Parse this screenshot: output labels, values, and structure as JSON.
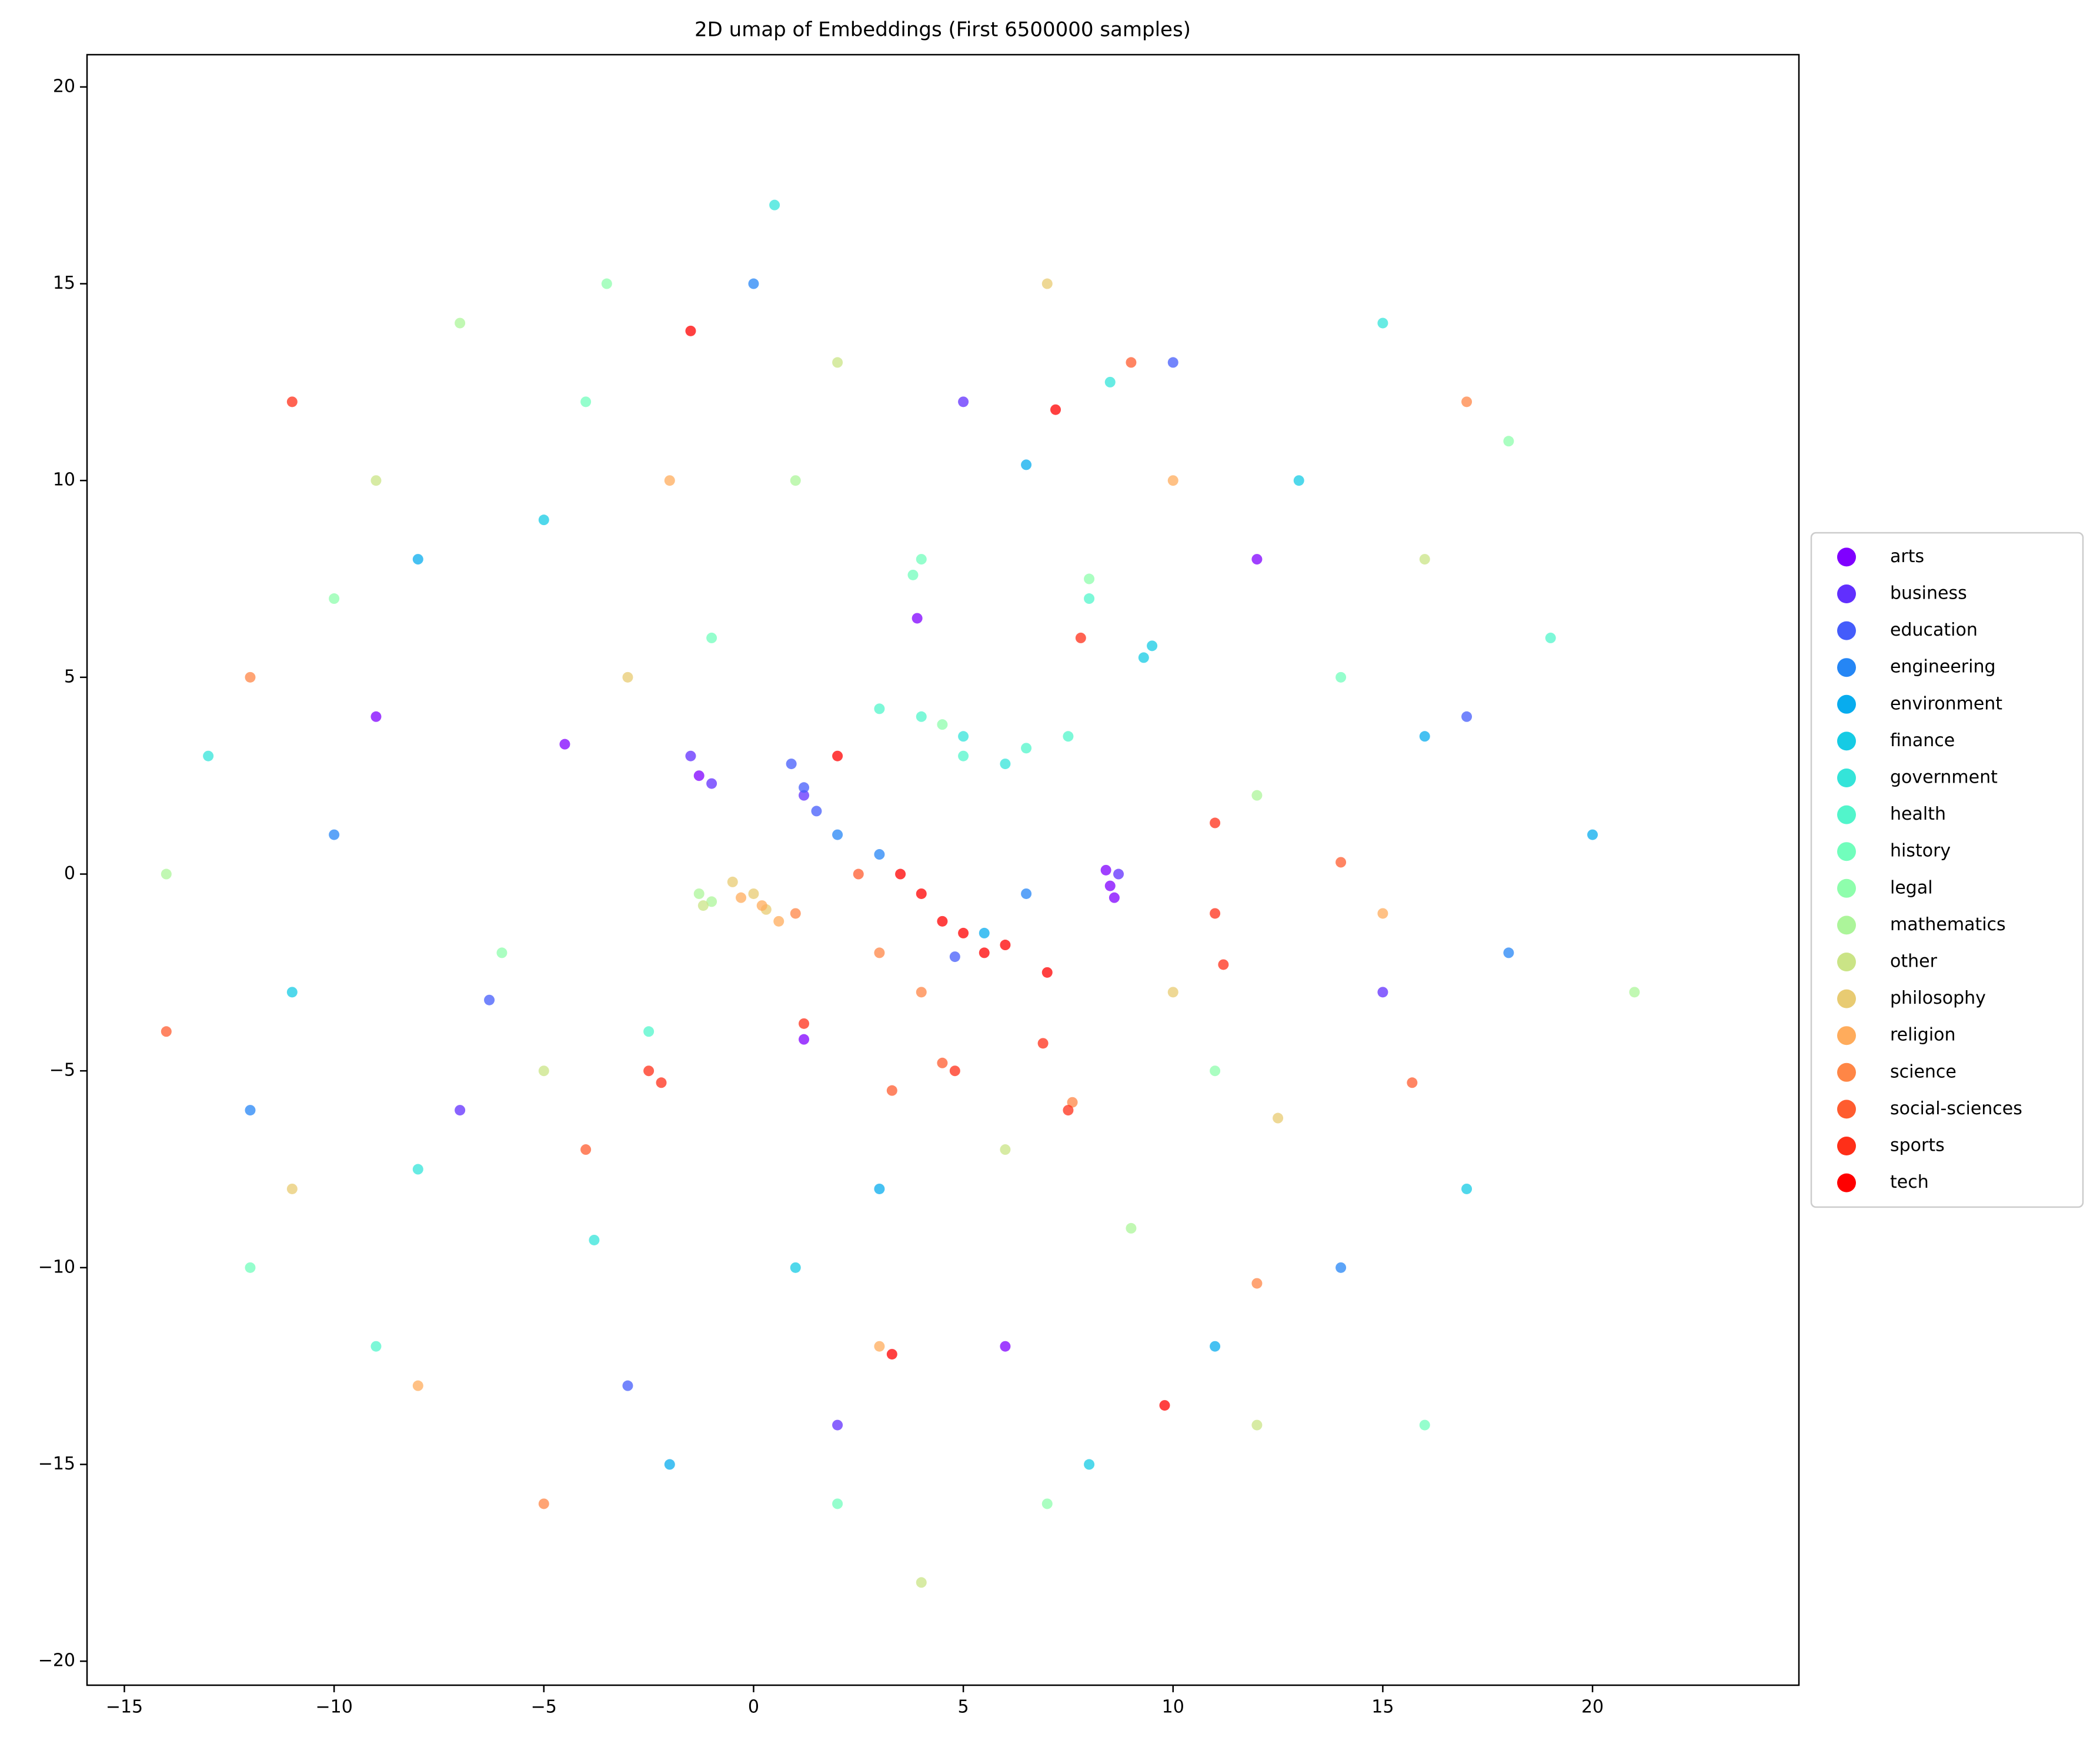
{
  "chart_data": {
    "type": "scatter",
    "title": "2D umap of Embeddings (First 6500000 samples)",
    "xlim": [
      -15.89,
      24.92
    ],
    "ylim": [
      -20.61,
      20.82
    ],
    "xticks": [
      {
        "value": -15,
        "label": "−15"
      },
      {
        "value": -10,
        "label": "−10"
      },
      {
        "value": -5,
        "label": "−5"
      },
      0,
      5,
      10,
      15,
      20
    ],
    "yticks": [
      {
        "value": -20,
        "label": "−20"
      },
      {
        "value": -15,
        "label": "−15"
      },
      {
        "value": -10,
        "label": "−10"
      },
      {
        "value": -5,
        "label": "−5"
      },
      0,
      5,
      10,
      15,
      20
    ],
    "grid": false,
    "legend": "right",
    "series": [
      {
        "name": "arts",
        "color": "#8000ff",
        "x": [
          8.5,
          8.6,
          8.4,
          -1.3,
          3.9,
          -4.5,
          1.2,
          12,
          -9,
          6
        ],
        "y": [
          -0.3,
          -0.6,
          0.1,
          2.5,
          6.5,
          3.3,
          -4.2,
          8,
          4,
          -12
        ]
      },
      {
        "name": "business",
        "color": "#612ffe",
        "x": [
          -1.0,
          -1.5,
          1.2,
          5,
          -7,
          15,
          2,
          8.7
        ],
        "y": [
          2.3,
          3.0,
          2.0,
          12,
          -6,
          -3,
          -14,
          0.0
        ]
      },
      {
        "name": "education",
        "color": "#445cfb",
        "x": [
          1.2,
          1.5,
          0.9,
          -6.3,
          10,
          17,
          -3,
          4.8
        ],
        "y": [
          2.2,
          1.6,
          2.8,
          -3.2,
          13,
          4,
          -13,
          -2.1
        ]
      },
      {
        "name": "engineering",
        "color": "#2586f5",
        "x": [
          2.0,
          3.0,
          6.5,
          -10,
          14,
          0,
          -12,
          18
        ],
        "y": [
          1.0,
          0.5,
          -0.5,
          1,
          -10,
          15,
          -6,
          -2
        ]
      },
      {
        "name": "environment",
        "color": "#08acee",
        "x": [
          6.5,
          16,
          -8,
          3,
          -2,
          11,
          20,
          5.5
        ],
        "y": [
          10.4,
          3.5,
          8,
          -8,
          -15,
          -12,
          1,
          -1.5
        ]
      },
      {
        "name": "finance",
        "color": "#16cbe4",
        "x": [
          9.5,
          9.3,
          -5,
          13,
          -11,
          8,
          1,
          17
        ],
        "y": [
          5.8,
          5.5,
          9,
          10,
          -3,
          -15,
          -10,
          -8
        ]
      },
      {
        "name": "government",
        "color": "#34e4d9",
        "x": [
          8.5,
          5,
          6,
          -8,
          -3.8,
          0.5,
          15,
          -13
        ],
        "y": [
          12.5,
          3.5,
          2.8,
          -7.5,
          -9.3,
          17,
          14,
          3
        ]
      },
      {
        "name": "health",
        "color": "#52f5cb",
        "x": [
          5,
          4,
          6.5,
          7.5,
          3,
          8,
          -2.5,
          -9,
          19
        ],
        "y": [
          3,
          4,
          3.2,
          3.5,
          4.2,
          7,
          -4,
          -12,
          6
        ]
      },
      {
        "name": "history",
        "color": "#71febc",
        "x": [
          3.8,
          4,
          -4,
          14,
          2,
          -12,
          16,
          -1
        ],
        "y": [
          7.6,
          8,
          12,
          5,
          -16,
          -10,
          -14,
          6
        ]
      },
      {
        "name": "legal",
        "color": "#8efeac",
        "x": [
          8,
          4.5,
          -3.5,
          11,
          -10,
          7,
          18,
          -6
        ],
        "y": [
          7.5,
          3.8,
          15,
          -5,
          7,
          -16,
          11,
          -2
        ]
      },
      {
        "name": "mathematics",
        "color": "#acf59a",
        "x": [
          -1.3,
          -1,
          1,
          12,
          -7,
          9,
          -14,
          21
        ],
        "y": [
          -0.5,
          -0.7,
          10,
          2,
          14,
          -9,
          0,
          -3
        ]
      },
      {
        "name": "other",
        "color": "#cae486",
        "x": [
          -1.2,
          6,
          -5,
          12,
          2,
          -9,
          16,
          4
        ],
        "y": [
          -0.8,
          -7,
          -5,
          -14,
          13,
          10,
          8,
          -18
        ]
      },
      {
        "name": "philosophy",
        "color": "#e8cb72",
        "x": [
          0,
          0.3,
          -0.5,
          12.5,
          -3,
          10,
          -11,
          7
        ],
        "y": [
          -0.5,
          -0.9,
          -0.2,
          -6.2,
          5,
          -3,
          -8,
          15
        ]
      },
      {
        "name": "religion",
        "color": "#ffac5c",
        "x": [
          0.2,
          0.6,
          -0.3,
          -2,
          15,
          -8,
          10,
          3
        ],
        "y": [
          -0.8,
          -1.2,
          -0.6,
          10,
          -1,
          -13,
          10,
          -12
        ]
      },
      {
        "name": "science",
        "color": "#ff8646",
        "x": [
          12,
          7.6,
          3,
          1,
          4,
          -12,
          17,
          -5
        ],
        "y": [
          -10.4,
          -5.8,
          -2,
          -1,
          -3,
          5,
          12,
          -16
        ]
      },
      {
        "name": "social-sciences",
        "color": "#ff5c2f",
        "x": [
          15.7,
          4.5,
          3.3,
          2.5,
          14,
          -4,
          9,
          -14
        ],
        "y": [
          -5.3,
          -4.8,
          -5.5,
          0,
          0.3,
          -7,
          13,
          -4
        ]
      },
      {
        "name": "sports",
        "color": "#ff2f18",
        "x": [
          -2.5,
          -2.2,
          1.2,
          11,
          11,
          11.2,
          7.8,
          7.5,
          4.8,
          6.9,
          -11
        ],
        "y": [
          -5,
          -5.3,
          -3.8,
          -1,
          1.3,
          -2.3,
          6,
          -6,
          -5,
          -4.3,
          12
        ]
      },
      {
        "name": "tech",
        "color": "#ff0000",
        "x": [
          4.5,
          5,
          3.5,
          2,
          6,
          7,
          -1.5,
          9.8,
          3.3,
          7.2,
          4,
          5.5
        ],
        "y": [
          -1.2,
          -1.5,
          0,
          3,
          -1.8,
          -2.5,
          13.8,
          -13.5,
          -12.2,
          11.8,
          -0.5,
          -2
        ]
      }
    ]
  }
}
